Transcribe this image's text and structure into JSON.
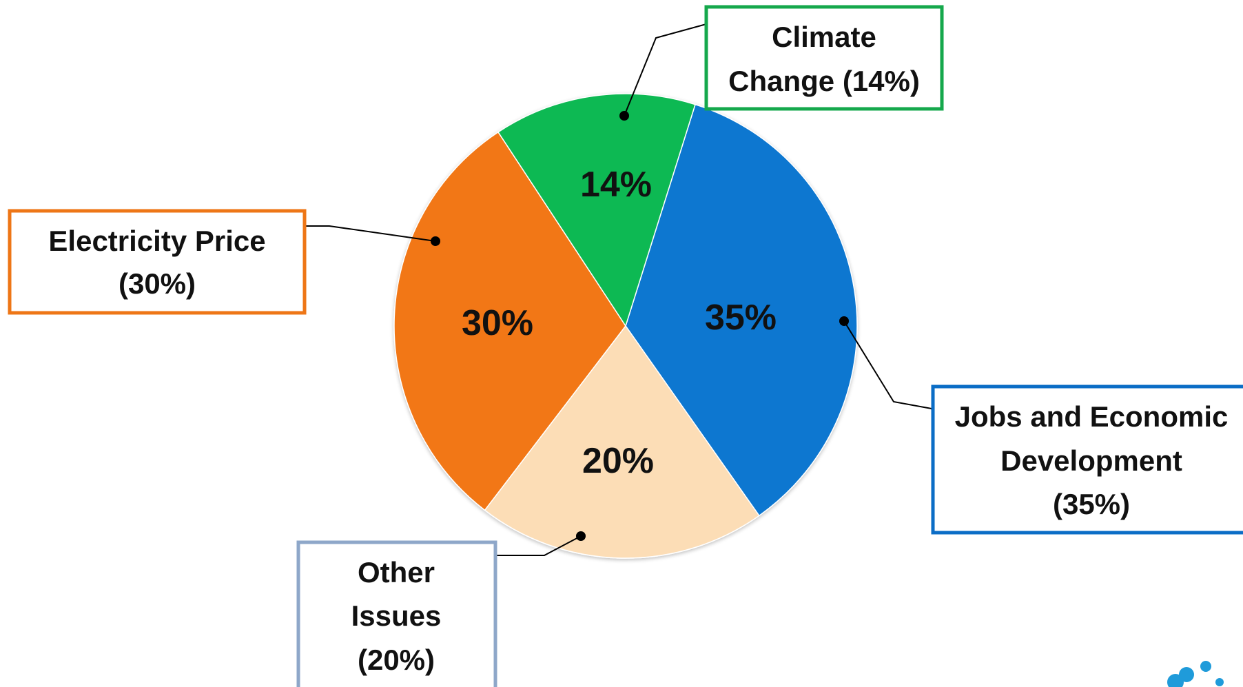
{
  "chart_data": {
    "type": "pie",
    "title": "",
    "slices": [
      {
        "key": "jobs",
        "percent_label": "35%",
        "value": 35,
        "color": "#0C77D0",
        "callout": [
          "Jobs and Economic",
          "Development",
          "(35%)"
        ],
        "callout_border": "#0B6DC6"
      },
      {
        "key": "other",
        "percent_label": "20%",
        "value": 20,
        "color": "#FCDDB6",
        "callout": [
          "Other",
          "Issues",
          "(20%)"
        ],
        "callout_border": "#8EA7C9"
      },
      {
        "key": "electricity",
        "percent_label": "30%",
        "value": 30,
        "color": "#F27712",
        "callout": [
          "Electricity Price",
          "(30%)"
        ],
        "callout_border": "#EE7616"
      },
      {
        "key": "climate",
        "percent_label": "14%",
        "value": 14,
        "color": "#09B953",
        "callout": [
          "Climate",
          "Change (14%)"
        ],
        "callout_border": "#15A84C"
      }
    ],
    "logo_color": "#1F9BDA"
  }
}
